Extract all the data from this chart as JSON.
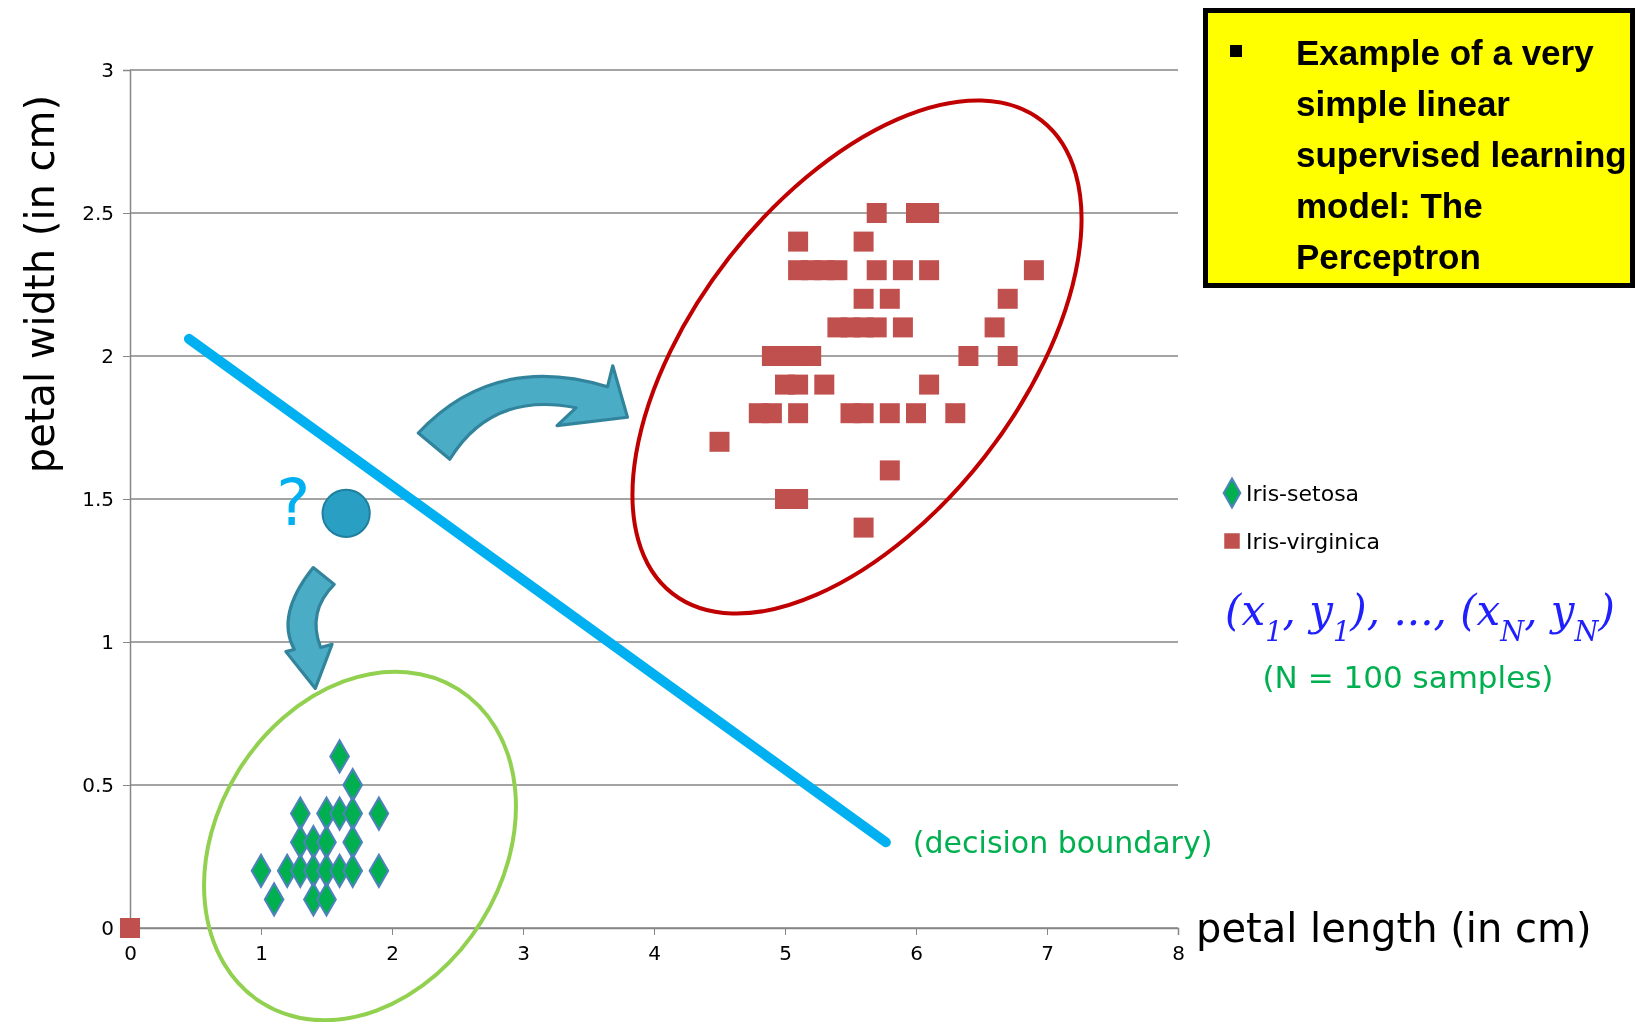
{
  "chart_data": {
    "type": "scatter",
    "xlabel": "petal length (in cm)",
    "ylabel": "petal width (in cm)",
    "xlim": [
      0,
      8
    ],
    "xticks": [
      0,
      1,
      2,
      3,
      4,
      5,
      6,
      7,
      8
    ],
    "ylim": [
      0,
      3
    ],
    "yticks": [
      0,
      0.5,
      1,
      1.5,
      2,
      2.5,
      3
    ],
    "grid": "y",
    "legend": "right",
    "series": [
      {
        "name": "Iris-setosa",
        "color": "#00b050",
        "marker": "diamond",
        "x": [
          1.6,
          1.7,
          1.3,
          1.5,
          1.6,
          1.7,
          1.9,
          1.3,
          1.4,
          1.5,
          1.7,
          1.0,
          1.2,
          1.3,
          1.4,
          1.5,
          1.6,
          1.7,
          1.9,
          1.1,
          1.4,
          1.5
        ],
        "values": [
          0.6,
          0.5,
          0.4,
          0.4,
          0.4,
          0.4,
          0.4,
          0.3,
          0.3,
          0.3,
          0.3,
          0.2,
          0.2,
          0.2,
          0.2,
          0.2,
          0.2,
          0.2,
          0.2,
          0.1,
          0.1,
          0.1
        ]
      },
      {
        "name": "Iris-virginica",
        "color": "#c0504d",
        "marker": "square",
        "x": [
          5.7,
          6.0,
          6.1,
          5.1,
          5.6,
          5.1,
          5.2,
          5.3,
          5.4,
          5.7,
          5.9,
          6.1,
          6.9,
          5.6,
          5.8,
          6.7,
          5.4,
          5.5,
          5.6,
          5.7,
          5.9,
          6.6,
          4.9,
          5.0,
          5.1,
          5.2,
          6.4,
          6.7,
          5.0,
          5.1,
          5.3,
          6.1,
          4.8,
          4.9,
          5.1,
          5.5,
          5.6,
          5.8,
          6.0,
          6.3,
          4.5,
          5.8,
          5.0,
          5.1,
          5.6,
          0
        ],
        "values": [
          2.5,
          2.5,
          2.5,
          2.4,
          2.4,
          2.3,
          2.3,
          2.3,
          2.3,
          2.3,
          2.3,
          2.3,
          2.3,
          2.2,
          2.2,
          2.2,
          2.1,
          2.1,
          2.1,
          2.1,
          2.1,
          2.1,
          2.0,
          2.0,
          2.0,
          2.0,
          2.0,
          2.0,
          1.9,
          1.9,
          1.9,
          1.9,
          1.8,
          1.8,
          1.8,
          1.8,
          1.8,
          1.8,
          1.8,
          1.8,
          1.7,
          1.6,
          1.5,
          1.5,
          1.4,
          0
        ]
      },
      {
        "type": "line",
        "color": "#00b0f0",
        "marker": "none",
        "x": [
          0.45,
          5.77
        ],
        "values": [
          2.06,
          0.3
        ]
      },
      {
        "color": "#2a9fc4",
        "marker": "circle",
        "x": [
          1.65
        ],
        "values": [
          1.45
        ]
      }
    ],
    "annotations": [
      {
        "text": "(decision boundary)",
        "x": 5.77,
        "y": 0.3
      },
      {
        "text": "?",
        "x": 1.65,
        "y": 1.45
      },
      "Example of a very simple linear supervised learning model: The Perceptron",
      "(x$_{1}$, y$_{1}$), ..., (x$_{N}$, y$_{N}$)",
      "(N = 100 samples)"
    ]
  }
}
